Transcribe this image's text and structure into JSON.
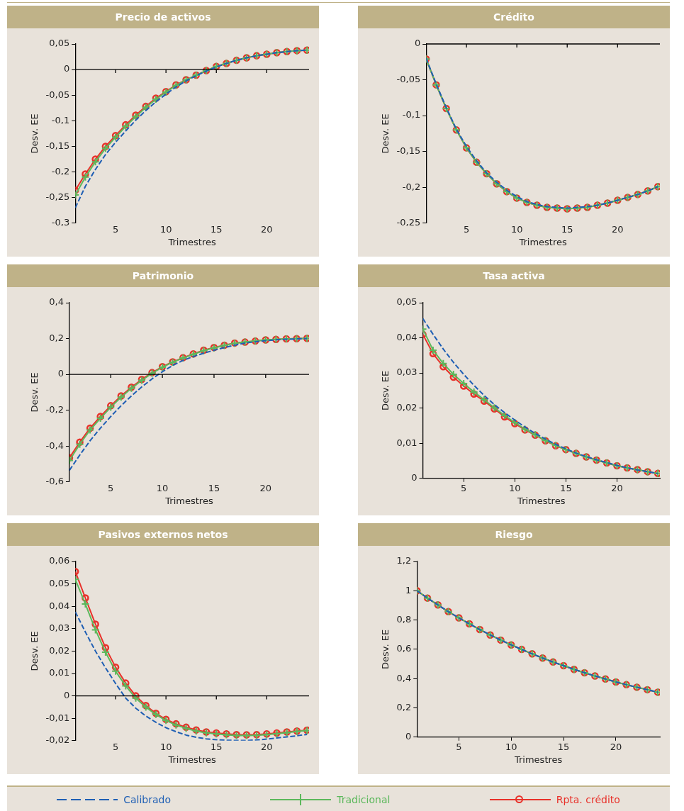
{
  "chart_data": [
    {
      "type": "line",
      "title": "Precio de activos",
      "xlabel": "Trimestres",
      "ylabel": "Desv. EE",
      "x": [
        1,
        2,
        3,
        4,
        5,
        6,
        7,
        8,
        9,
        10,
        11,
        12,
        13,
        14,
        15,
        16,
        17,
        18,
        19,
        20,
        21,
        22,
        23,
        24
      ],
      "xlim": [
        1,
        24.2
      ],
      "xticks": [
        5,
        10,
        15,
        20
      ],
      "ylim": [
        -0.3,
        0.05
      ],
      "yticks": [
        {
          "value": -0.3,
          "label": "-0,3"
        },
        {
          "value": -0.25,
          "label": "-0,25"
        },
        {
          "value": -0.2,
          "label": "-0,2"
        },
        {
          "value": -0.15,
          "label": "-0,15"
        },
        {
          "value": -0.1,
          "label": "-0,1"
        },
        {
          "value": -0.05,
          "label": "-0,05"
        },
        {
          "value": 0,
          "label": "0"
        },
        {
          "value": 0.05,
          "label": "0,05"
        }
      ],
      "grid": false,
      "legend": "bottom",
      "ref_lines": [
        {
          "axis": "y",
          "value": 0,
          "color": "#000000"
        }
      ],
      "series": [
        {
          "name": "Calibrado",
          "color": "#1f5fb4",
          "marker": "none",
          "line_style": "dashed",
          "values": [
            -0.27,
            -0.228,
            -0.195,
            -0.166,
            -0.142,
            -0.12,
            -0.099,
            -0.08,
            -0.063,
            -0.048,
            -0.034,
            -0.022,
            -0.012,
            -0.003,
            0.005,
            0.012,
            0.018,
            0.023,
            0.027,
            0.03,
            0.033,
            0.035,
            0.037,
            0.038
          ]
        },
        {
          "name": "Tradicional",
          "color": "#5cb85c",
          "marker": "cross",
          "line_style": "solid",
          "values": [
            -0.245,
            -0.21,
            -0.18,
            -0.154,
            -0.132,
            -0.111,
            -0.092,
            -0.074,
            -0.058,
            -0.044,
            -0.031,
            -0.02,
            -0.011,
            -0.002,
            0.006,
            0.012,
            0.018,
            0.023,
            0.027,
            0.03,
            0.033,
            0.035,
            0.037,
            0.038
          ]
        },
        {
          "name": "Rpta. crédito",
          "color": "#e8312a",
          "marker": "circle",
          "line_style": "solid",
          "values": [
            -0.236,
            -0.204,
            -0.175,
            -0.15,
            -0.129,
            -0.108,
            -0.089,
            -0.072,
            -0.056,
            -0.043,
            -0.03,
            -0.02,
            -0.011,
            -0.002,
            0.006,
            0.012,
            0.018,
            0.023,
            0.027,
            0.03,
            0.033,
            0.035,
            0.037,
            0.038
          ]
        }
      ]
    },
    {
      "type": "line",
      "title": "Crédito",
      "xlabel": "Trimestres",
      "ylabel": "Desv. EE",
      "x": [
        1,
        2,
        3,
        4,
        5,
        6,
        7,
        8,
        9,
        10,
        11,
        12,
        13,
        14,
        15,
        16,
        17,
        18,
        19,
        20,
        21,
        22,
        23,
        24
      ],
      "xlim": [
        1,
        24.2
      ],
      "xticks": [
        5,
        10,
        15,
        20
      ],
      "ylim": [
        -0.25,
        0
      ],
      "yticks": [
        {
          "value": -0.25,
          "label": "-0,25"
        },
        {
          "value": -0.2,
          "label": "-0,2"
        },
        {
          "value": -0.15,
          "label": "-0,15"
        },
        {
          "value": -0.1,
          "label": "-0,1"
        },
        {
          "value": -0.05,
          "label": "-0,05"
        },
        {
          "value": 0,
          "label": "0"
        }
      ],
      "grid": false,
      "ref_lines": [
        {
          "axis": "y",
          "value": 0,
          "color": "#000000"
        }
      ],
      "series": [
        {
          "color": "#1f5fb4",
          "marker": "none",
          "line_style": "dashed",
          "values": [
            -0.02,
            -0.056,
            -0.089,
            -0.119,
            -0.143,
            -0.163,
            -0.18,
            -0.193,
            -0.204,
            -0.213,
            -0.22,
            -0.224,
            -0.227,
            -0.228,
            -0.229,
            -0.228,
            -0.227,
            -0.225,
            -0.222,
            -0.218,
            -0.214,
            -0.21,
            -0.205,
            -0.199
          ]
        },
        {
          "color": "#5cb85c",
          "marker": "cross",
          "line_style": "solid",
          "values": [
            -0.021,
            -0.057,
            -0.09,
            -0.12,
            -0.145,
            -0.165,
            -0.181,
            -0.195,
            -0.206,
            -0.215,
            -0.221,
            -0.225,
            -0.228,
            -0.229,
            -0.23,
            -0.229,
            -0.228,
            -0.225,
            -0.222,
            -0.218,
            -0.214,
            -0.21,
            -0.205,
            -0.199
          ]
        },
        {
          "color": "#e8312a",
          "marker": "circle",
          "line_style": "solid",
          "values": [
            -0.021,
            -0.057,
            -0.09,
            -0.12,
            -0.145,
            -0.165,
            -0.181,
            -0.195,
            -0.206,
            -0.215,
            -0.221,
            -0.225,
            -0.228,
            -0.229,
            -0.23,
            -0.229,
            -0.228,
            -0.225,
            -0.222,
            -0.218,
            -0.214,
            -0.21,
            -0.205,
            -0.199
          ]
        }
      ]
    },
    {
      "type": "line",
      "title": "Patrimonio",
      "xlabel": "Trimestres",
      "ylabel": "Desv. EE",
      "x": [
        1,
        2,
        3,
        4,
        5,
        6,
        7,
        8,
        9,
        10,
        11,
        12,
        13,
        14,
        15,
        16,
        17,
        18,
        19,
        20,
        21,
        22,
        23,
        24
      ],
      "xlim": [
        1,
        24.2
      ],
      "xticks": [
        5,
        10,
        15,
        20
      ],
      "ylim": [
        -0.6,
        0.4
      ],
      "yticks": [
        {
          "value": -0.6,
          "label": "-0,6"
        },
        {
          "value": -0.4,
          "label": "-0,4"
        },
        {
          "value": -0.2,
          "label": "-0,2"
        },
        {
          "value": 0,
          "label": "0"
        },
        {
          "value": 0.2,
          "label": "0,2"
        },
        {
          "value": 0.4,
          "label": "0,4"
        }
      ],
      "grid": false,
      "ref_lines": [
        {
          "axis": "y",
          "value": 0,
          "color": "#000000"
        }
      ],
      "series": [
        {
          "color": "#1f5fb4",
          "marker": "none",
          "line_style": "dashed",
          "values": [
            -0.535,
            -0.45,
            -0.37,
            -0.3,
            -0.235,
            -0.175,
            -0.12,
            -0.07,
            -0.025,
            0.015,
            0.05,
            0.078,
            0.1,
            0.118,
            0.135,
            0.15,
            0.163,
            0.175,
            0.182,
            0.188,
            0.193,
            0.196,
            0.198,
            0.2
          ]
        },
        {
          "color": "#5cb85c",
          "marker": "cross",
          "line_style": "solid",
          "values": [
            -0.48,
            -0.39,
            -0.31,
            -0.245,
            -0.183,
            -0.127,
            -0.078,
            -0.033,
            0.006,
            0.04,
            0.068,
            0.091,
            0.112,
            0.133,
            0.148,
            0.162,
            0.174,
            0.18,
            0.186,
            0.192,
            0.195,
            0.198,
            0.199,
            0.201
          ]
        },
        {
          "color": "#e8312a",
          "marker": "circle",
          "line_style": "solid",
          "values": [
            -0.465,
            -0.378,
            -0.3,
            -0.235,
            -0.175,
            -0.12,
            -0.072,
            -0.028,
            0.01,
            0.043,
            0.07,
            0.093,
            0.114,
            0.135,
            0.15,
            0.163,
            0.175,
            0.18,
            0.186,
            0.192,
            0.195,
            0.198,
            0.199,
            0.201
          ]
        }
      ]
    },
    {
      "type": "line",
      "title": "Tasa activa",
      "xlabel": "Trimestres",
      "ylabel": "Desv. EE",
      "x": [
        1,
        2,
        3,
        4,
        5,
        6,
        7,
        8,
        9,
        10,
        11,
        12,
        13,
        14,
        15,
        16,
        17,
        18,
        19,
        20,
        21,
        22,
        23,
        24
      ],
      "xlim": [
        1,
        24.2
      ],
      "xticks": [
        5,
        10,
        15,
        20
      ],
      "ylim": [
        0,
        0.05
      ],
      "yticks": [
        {
          "value": 0,
          "label": "0"
        },
        {
          "value": 0.01,
          "label": "0,01"
        },
        {
          "value": 0.02,
          "label": "0,02"
        },
        {
          "value": 0.03,
          "label": "0,03"
        },
        {
          "value": 0.04,
          "label": "0,04"
        },
        {
          "value": 0.05,
          "label": "0,05"
        }
      ],
      "grid": false,
      "series": [
        {
          "color": "#1f5fb4",
          "marker": "none",
          "line_style": "dashed",
          "values": [
            0.0455,
            0.041,
            0.0368,
            0.033,
            0.0296,
            0.0265,
            0.0236,
            0.021,
            0.0187,
            0.0166,
            0.0146,
            0.0128,
            0.0112,
            0.0097,
            0.0084,
            0.0072,
            0.0062,
            0.0053,
            0.0045,
            0.0037,
            0.003,
            0.0024,
            0.0019,
            0.0014
          ]
        },
        {
          "color": "#5cb85c",
          "marker": "cross",
          "line_style": "solid",
          "values": [
            0.0425,
            0.0365,
            0.0327,
            0.0296,
            0.027,
            0.0246,
            0.0224,
            0.0201,
            0.0179,
            0.0159,
            0.014,
            0.0124,
            0.0108,
            0.0094,
            0.0082,
            0.0071,
            0.0061,
            0.0052,
            0.0044,
            0.0036,
            0.003,
            0.0025,
            0.0019,
            0.0014
          ]
        },
        {
          "color": "#e8312a",
          "marker": "circle",
          "line_style": "solid",
          "values": [
            0.041,
            0.0355,
            0.0318,
            0.0288,
            0.0263,
            0.024,
            0.022,
            0.0198,
            0.0175,
            0.0156,
            0.0138,
            0.0123,
            0.0107,
            0.0093,
            0.0082,
            0.0071,
            0.0061,
            0.0052,
            0.0044,
            0.0036,
            0.003,
            0.0025,
            0.0019,
            0.0014
          ]
        }
      ]
    },
    {
      "type": "line",
      "title": "Pasivos externos netos",
      "xlabel": "Trimestres",
      "ylabel": "Desv. EE",
      "x": [
        1,
        2,
        3,
        4,
        5,
        6,
        7,
        8,
        9,
        10,
        11,
        12,
        13,
        14,
        15,
        16,
        17,
        18,
        19,
        20,
        21,
        22,
        23,
        24
      ],
      "xlim": [
        1,
        24.2
      ],
      "xticks": [
        5,
        10,
        15,
        20
      ],
      "ylim": [
        -0.02,
        0.06
      ],
      "yticks": [
        {
          "value": -0.02,
          "label": "-0,02"
        },
        {
          "value": -0.01,
          "label": "-0,01"
        },
        {
          "value": 0,
          "label": "0"
        },
        {
          "value": 0.01,
          "label": "0,01"
        },
        {
          "value": 0.02,
          "label": "0,02"
        },
        {
          "value": 0.03,
          "label": "0,03"
        },
        {
          "value": 0.04,
          "label": "0,04"
        },
        {
          "value": 0.05,
          "label": "0,05"
        },
        {
          "value": 0.06,
          "label": "0,06"
        }
      ],
      "grid": false,
      "ref_lines": [
        {
          "axis": "y",
          "value": 0,
          "color": "#000000"
        }
      ],
      "series": [
        {
          "color": "#1f5fb4",
          "marker": "none",
          "line_style": "dashed",
          "values": [
            0.0375,
            0.0285,
            0.02,
            0.0125,
            0.0055,
            -0.001,
            -0.0055,
            -0.009,
            -0.0118,
            -0.0142,
            -0.016,
            -0.0175,
            -0.0185,
            -0.0192,
            -0.0196,
            -0.0198,
            -0.0199,
            -0.0199,
            -0.0197,
            -0.0193,
            -0.0188,
            -0.0183,
            -0.0178,
            -0.0172
          ]
        },
        {
          "color": "#5cb85c",
          "marker": "cross",
          "line_style": "solid",
          "values": [
            0.052,
            0.041,
            0.0295,
            0.0195,
            0.011,
            0.0045,
            -0.001,
            -0.005,
            -0.0083,
            -0.011,
            -0.013,
            -0.0145,
            -0.0157,
            -0.0165,
            -0.017,
            -0.0174,
            -0.0177,
            -0.0177,
            -0.0176,
            -0.0173,
            -0.0169,
            -0.0164,
            -0.0159,
            -0.0155
          ]
        },
        {
          "color": "#e8312a",
          "marker": "circle",
          "line_style": "solid",
          "values": [
            0.0555,
            0.0437,
            0.032,
            0.0215,
            0.0128,
            0.0057,
            0,
            -0.0043,
            -0.0078,
            -0.0105,
            -0.0125,
            -0.014,
            -0.0152,
            -0.0161,
            -0.0166,
            -0.017,
            -0.0173,
            -0.0174,
            -0.0173,
            -0.017,
            -0.0166,
            -0.0161,
            -0.0157,
            -0.0153
          ]
        }
      ]
    },
    {
      "type": "line",
      "title": "Riesgo",
      "xlabel": "Trimestres",
      "ylabel": "Desv. EE",
      "x": [
        1,
        2,
        3,
        4,
        5,
        6,
        7,
        8,
        9,
        10,
        11,
        12,
        13,
        14,
        15,
        16,
        17,
        18,
        19,
        20,
        21,
        22,
        23,
        24
      ],
      "xlim": [
        1,
        24.2
      ],
      "xticks": [
        5,
        10,
        15,
        20
      ],
      "ylim": [
        0,
        1.2
      ],
      "yticks": [
        {
          "value": 0,
          "label": "0"
        },
        {
          "value": 0.2,
          "label": "0,2"
        },
        {
          "value": 0.4,
          "label": "0,4"
        },
        {
          "value": 0.6,
          "label": "0,6"
        },
        {
          "value": 0.8,
          "label": "0,8"
        },
        {
          "value": 1,
          "label": "1"
        },
        {
          "value": 1.2,
          "label": "1,2"
        }
      ],
      "grid": false,
      "series": [
        {
          "color": "#1f5fb4",
          "marker": "none",
          "line_style": "dashed",
          "values": [
            1,
            0.95,
            0.903,
            0.857,
            0.815,
            0.774,
            0.735,
            0.698,
            0.663,
            0.63,
            0.599,
            0.569,
            0.54,
            0.513,
            0.488,
            0.463,
            0.44,
            0.418,
            0.397,
            0.377,
            0.358,
            0.341,
            0.324,
            0.307
          ]
        },
        {
          "color": "#5cb85c",
          "marker": "cross",
          "line_style": "solid",
          "values": [
            1,
            0.95,
            0.903,
            0.857,
            0.815,
            0.774,
            0.735,
            0.698,
            0.663,
            0.63,
            0.599,
            0.569,
            0.54,
            0.513,
            0.488,
            0.463,
            0.44,
            0.418,
            0.397,
            0.377,
            0.358,
            0.341,
            0.324,
            0.307
          ]
        },
        {
          "color": "#e8312a",
          "marker": "circle",
          "line_style": "solid",
          "values": [
            1,
            0.95,
            0.903,
            0.857,
            0.815,
            0.774,
            0.735,
            0.698,
            0.663,
            0.63,
            0.599,
            0.569,
            0.54,
            0.513,
            0.488,
            0.463,
            0.44,
            0.418,
            0.397,
            0.377,
            0.358,
            0.341,
            0.324,
            0.307
          ]
        }
      ]
    }
  ]
}
